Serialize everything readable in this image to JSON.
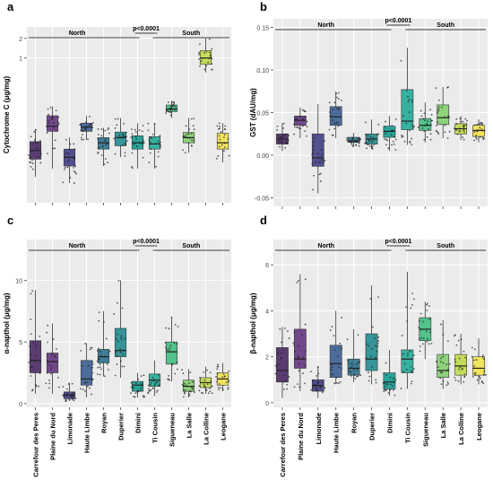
{
  "panels": [
    "a",
    "b",
    "c",
    "d"
  ],
  "sites": [
    "Carrefour des Peres",
    "Plaine du Nord",
    "Limonade",
    "Haute Limbe",
    "Royan",
    "Duperier",
    "Dimini",
    "Ti Cousin",
    "Sigueneau",
    "La Salle",
    "La Colline",
    "Leogane"
  ],
  "colors": [
    "#5a3c73",
    "#71498a",
    "#52508e",
    "#4c6c9b",
    "#3f7e96",
    "#35959a",
    "#2aa49a",
    "#35b29f",
    "#53c28b",
    "#8ed27b",
    "#c4dc5b",
    "#f1e45d"
  ],
  "group_labels": {
    "north": "North",
    "south": "South",
    "pvalue": "p<0.0001"
  },
  "chart_data": [
    {
      "panel": "a",
      "type": "box",
      "ylabel": "Cytochrome C (μg/mg)",
      "scale": "log",
      "yticks": [
        {
          "v": 1,
          "label": "1"
        },
        {
          "v": 2,
          "label": "2"
        }
      ],
      "ylim": [
        0.006,
        3
      ],
      "boxes": [
        {
          "min": 0.015,
          "q1": 0.028,
          "med": 0.038,
          "q3": 0.052,
          "max": 0.08
        },
        {
          "min": 0.02,
          "q1": 0.075,
          "med": 0.09,
          "q3": 0.13,
          "max": 0.18
        },
        {
          "min": 0.012,
          "q1": 0.022,
          "med": 0.03,
          "q3": 0.04,
          "max": 0.06
        },
        {
          "min": 0.055,
          "q1": 0.075,
          "med": 0.087,
          "q3": 0.1,
          "max": 0.13
        },
        {
          "min": 0.022,
          "q1": 0.04,
          "med": 0.05,
          "q3": 0.06,
          "max": 0.085
        },
        {
          "min": 0.03,
          "q1": 0.045,
          "med": 0.06,
          "q3": 0.073,
          "max": 0.12
        },
        {
          "min": 0.02,
          "q1": 0.04,
          "med": 0.05,
          "q3": 0.064,
          "max": 0.1
        },
        {
          "min": 0.02,
          "q1": 0.04,
          "med": 0.048,
          "q3": 0.062,
          "max": 0.1
        },
        {
          "min": 0.12,
          "q1": 0.15,
          "med": 0.165,
          "q3": 0.19,
          "max": 0.22
        },
        {
          "min": 0.035,
          "q1": 0.05,
          "med": 0.06,
          "q3": 0.072,
          "max": 0.12
        },
        {
          "min": 0.6,
          "q1": 0.8,
          "med": 1.0,
          "q3": 1.3,
          "max": 2.0
        },
        {
          "min": 0.025,
          "q1": 0.04,
          "med": 0.05,
          "q3": 0.07,
          "max": 0.1
        }
      ]
    },
    {
      "panel": "b",
      "type": "box",
      "ylabel": "GST (dAU/mg)",
      "scale": "linear",
      "yticks": [
        {
          "v": -0.05,
          "label": "-0.05"
        },
        {
          "v": 0,
          "label": "0.00"
        },
        {
          "v": 0.05,
          "label": "0.05"
        },
        {
          "v": 0.1,
          "label": "0.10"
        },
        {
          "v": 0.15,
          "label": "0.15"
        }
      ],
      "ylim": [
        -0.06,
        0.16
      ],
      "boxes": [
        {
          "min": 0.005,
          "q1": 0.013,
          "med": 0.019,
          "q3": 0.025,
          "max": 0.038
        },
        {
          "min": 0.02,
          "q1": 0.035,
          "med": 0.041,
          "q3": 0.046,
          "max": 0.056
        },
        {
          "min": -0.045,
          "q1": -0.013,
          "med": -0.003,
          "q3": 0.025,
          "max": 0.06
        },
        {
          "min": 0.02,
          "q1": 0.035,
          "med": 0.045,
          "q3": 0.057,
          "max": 0.075
        },
        {
          "min": 0.01,
          "q1": 0.015,
          "med": 0.017,
          "q3": 0.021,
          "max": 0.026
        },
        {
          "min": 0.007,
          "q1": 0.013,
          "med": 0.019,
          "q3": 0.025,
          "max": 0.042
        },
        {
          "min": 0.005,
          "q1": 0.021,
          "med": 0.028,
          "q3": 0.034,
          "max": 0.046
        },
        {
          "min": 0.012,
          "q1": 0.03,
          "med": 0.04,
          "q3": 0.077,
          "max": 0.126
        },
        {
          "min": 0.015,
          "q1": 0.029,
          "med": 0.035,
          "q3": 0.043,
          "max": 0.062
        },
        {
          "min": 0.02,
          "q1": 0.036,
          "med": 0.044,
          "q3": 0.059,
          "max": 0.08
        },
        {
          "min": 0.018,
          "q1": 0.025,
          "med": 0.031,
          "q3": 0.037,
          "max": 0.046
        },
        {
          "min": 0.015,
          "q1": 0.022,
          "med": 0.029,
          "q3": 0.035,
          "max": 0.042
        }
      ]
    },
    {
      "panel": "c",
      "type": "box",
      "ylabel": "α-napthol (μg/mg)",
      "scale": "linear",
      "yticks": [
        {
          "v": 0,
          "label": "0"
        },
        {
          "v": 5,
          "label": "5"
        },
        {
          "v": 10,
          "label": "10"
        }
      ],
      "ylim": [
        -0.3,
        13.3
      ],
      "boxes": [
        {
          "min": 0.8,
          "q1": 2.5,
          "med": 3.5,
          "q3": 5.1,
          "max": 9.2
        },
        {
          "min": 0.8,
          "q1": 2.5,
          "med": 3.4,
          "q3": 4.1,
          "max": 6.5
        },
        {
          "min": 0.2,
          "q1": 0.4,
          "med": 0.7,
          "q3": 0.95,
          "max": 1.7
        },
        {
          "min": 0.5,
          "q1": 1.5,
          "med": 2.0,
          "q3": 3.5,
          "max": 4.9
        },
        {
          "min": 2.2,
          "q1": 3.3,
          "med": 3.8,
          "q3": 4.4,
          "max": 7.5
        },
        {
          "min": 2.1,
          "q1": 3.8,
          "med": 4.3,
          "q3": 6.1,
          "max": 10.0
        },
        {
          "min": 0.5,
          "q1": 1.0,
          "med": 1.5,
          "q3": 1.8,
          "max": 2.5
        },
        {
          "min": 0.6,
          "q1": 1.4,
          "med": 1.9,
          "q3": 2.4,
          "max": 3.5
        },
        {
          "min": 1.8,
          "q1": 3.2,
          "med": 4.2,
          "q3": 5.0,
          "max": 7.0
        },
        {
          "min": 0.5,
          "q1": 1.0,
          "med": 1.4,
          "q3": 1.9,
          "max": 2.8
        },
        {
          "min": 0.8,
          "q1": 1.3,
          "med": 1.7,
          "q3": 2.1,
          "max": 3.0
        },
        {
          "min": 1.0,
          "q1": 1.5,
          "med": 2.0,
          "q3": 2.5,
          "max": 3.3
        }
      ]
    },
    {
      "panel": "d",
      "type": "box",
      "ylabel": "β-napthol (μg/mg)",
      "scale": "linear",
      "yticks": [
        {
          "v": 0,
          "label": "0"
        },
        {
          "v": 2,
          "label": "2"
        },
        {
          "v": 4,
          "label": "4"
        },
        {
          "v": 6,
          "label": "6"
        }
      ],
      "ylim": [
        -0.2,
        7.1
      ],
      "boxes": [
        {
          "min": 0.2,
          "q1": 0.9,
          "med": 1.4,
          "q3": 2.4,
          "max": 3.3
        },
        {
          "min": 0.5,
          "q1": 1.5,
          "med": 1.9,
          "q3": 3.2,
          "max": 5.6
        },
        {
          "min": 0.2,
          "q1": 0.5,
          "med": 0.75,
          "q3": 1.0,
          "max": 1.6
        },
        {
          "min": 0.8,
          "q1": 1.1,
          "med": 1.7,
          "q3": 2.5,
          "max": 4.0
        },
        {
          "min": 0.9,
          "q1": 1.2,
          "med": 1.5,
          "q3": 1.9,
          "max": 3.2
        },
        {
          "min": 0.8,
          "q1": 1.4,
          "med": 1.9,
          "q3": 3.0,
          "max": 5.1
        },
        {
          "min": 0.3,
          "q1": 0.6,
          "med": 0.9,
          "q3": 1.3,
          "max": 2.3
        },
        {
          "min": 0.6,
          "q1": 1.3,
          "med": 1.9,
          "q3": 2.3,
          "max": 5.7
        },
        {
          "min": 1.9,
          "q1": 2.7,
          "med": 3.2,
          "q3": 3.7,
          "max": 4.4
        },
        {
          "min": 0.6,
          "q1": 1.1,
          "med": 1.4,
          "q3": 2.1,
          "max": 3.6
        },
        {
          "min": 0.8,
          "q1": 1.2,
          "med": 1.6,
          "q3": 2.1,
          "max": 3.0
        },
        {
          "min": 0.8,
          "q1": 1.2,
          "med": 1.5,
          "q3": 2.0,
          "max": 2.8
        }
      ]
    }
  ]
}
